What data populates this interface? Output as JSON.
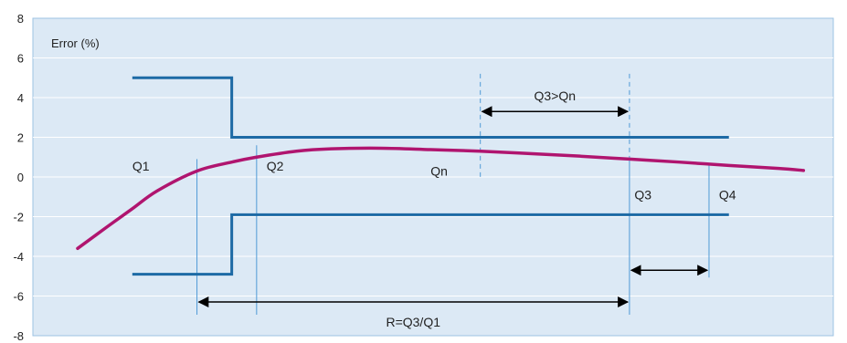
{
  "chart_data": {
    "type": "line",
    "ylabel": "Error (%)",
    "ylim": [
      -8,
      8
    ],
    "yticks": [
      "8",
      "6",
      "4",
      "2",
      "0",
      "-2",
      "-4",
      "-6",
      "-8"
    ],
    "grid": true,
    "colors": {
      "plot_bg": "#dce9f5",
      "frame": "#9cc3e3",
      "grid": "#ffffff",
      "mpe": "#1d6aa5",
      "curve": "#b0156f",
      "guide": "#4f9ad6",
      "arrow": "#000000"
    },
    "series": [
      {
        "values": [
          [
            -5.6,
            -3.6
          ],
          [
            -5.0,
            -2.5
          ],
          [
            -4.5,
            -1.6
          ],
          [
            -4.0,
            -0.7
          ],
          [
            -3.2,
            0.3
          ],
          [
            -2.5,
            0.75
          ],
          [
            -2.0,
            1.0
          ],
          [
            -1.2,
            1.3
          ],
          [
            -0.5,
            1.42
          ],
          [
            0.5,
            1.45
          ],
          [
            1.5,
            1.38
          ],
          [
            2.5,
            1.3
          ],
          [
            3.5,
            1.18
          ],
          [
            4.5,
            1.05
          ],
          [
            5.5,
            0.9
          ],
          [
            6.5,
            0.75
          ],
          [
            7.5,
            0.58
          ],
          [
            8.5,
            0.43
          ],
          [
            9.0,
            0.33
          ]
        ]
      }
    ],
    "limits": {
      "upper": [
        [
          -4.5,
          5
        ],
        [
          -2.5,
          5
        ],
        [
          -2.5,
          2
        ],
        [
          7.5,
          2
        ]
      ],
      "lower": [
        [
          -4.5,
          -4.9
        ],
        [
          -2.5,
          -4.9
        ],
        [
          -2.5,
          -1.9
        ],
        [
          7.5,
          -1.9
        ]
      ]
    },
    "annotations": [
      {
        "label": "Q1",
        "x": -3.2,
        "y": 0.3,
        "lx": -4.5,
        "ly": 0.55
      },
      {
        "label": "Q2",
        "x": -2.0,
        "y": 1.0,
        "lx": -1.8,
        "ly": 0.55
      },
      {
        "label": "Qn",
        "x": 2.5,
        "y": 1.3,
        "lx": 1.5,
        "ly": 0.3
      },
      {
        "label": "Q3",
        "x": 5.5,
        "y": 0.9,
        "lx": 5.6,
        "ly": -0.9
      },
      {
        "label": "Q4",
        "x": 7.1,
        "y": 0.6,
        "lx": 7.3,
        "ly": -0.9
      }
    ],
    "range_labels": {
      "r": "R=Q3/Q1",
      "q3_qn": "Q3>Qn"
    },
    "range_arrows": {
      "r": {
        "x1": -3.2,
        "x2": 5.5,
        "y": -6.3,
        "label_y": -7.3
      },
      "q3_qn": {
        "x1": 2.5,
        "x2": 5.5,
        "y": 3.3,
        "label_y": 4.1
      },
      "q3_q4": {
        "x1": 5.5,
        "x2": 7.1,
        "y": -4.7
      }
    },
    "q3_qn_guide_top": 5.2
  }
}
